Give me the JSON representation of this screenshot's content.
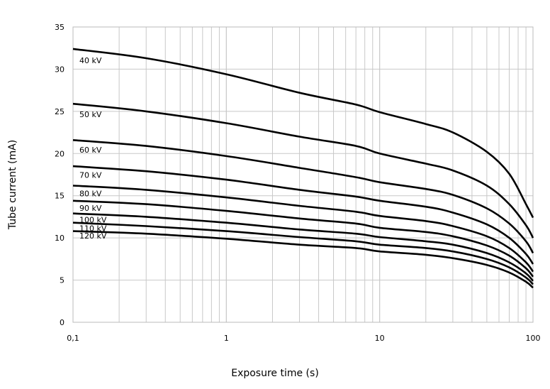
{
  "chart_data": {
    "type": "line",
    "title": "",
    "xlabel": "Exposure time (s)",
    "ylabel": "Tube current (mA)",
    "x_scale": "log",
    "xlim": [
      0.1,
      100
    ],
    "ylim": [
      0,
      35
    ],
    "x_ticks": [
      {
        "value": 0.1,
        "label": "0,1"
      },
      {
        "value": 1,
        "label": "1"
      },
      {
        "value": 10,
        "label": "10"
      },
      {
        "value": 100,
        "label": "100"
      }
    ],
    "y_ticks": [
      0,
      5,
      10,
      15,
      20,
      25,
      30,
      35
    ],
    "grid": true,
    "line_color": "#000000",
    "grid_color": "#c8c8c8",
    "series": [
      {
        "name": "40 kV",
        "x": [
          0.1,
          0.3,
          1,
          3,
          7,
          10,
          20,
          30,
          50,
          70,
          90,
          100
        ],
        "values": [
          32.4,
          31.3,
          29.4,
          27.2,
          25.8,
          24.9,
          23.5,
          22.5,
          20.2,
          17.6,
          14.0,
          12.4
        ]
      },
      {
        "name": "50 kV",
        "x": [
          0.1,
          0.3,
          1,
          3,
          7,
          10,
          20,
          30,
          50,
          70,
          90,
          100
        ],
        "values": [
          25.9,
          25.0,
          23.6,
          22.0,
          20.9,
          20.0,
          18.8,
          18.0,
          16.2,
          14.0,
          11.5,
          10.0
        ]
      },
      {
        "name": "60 kV",
        "x": [
          0.1,
          0.3,
          1,
          3,
          7,
          10,
          20,
          30,
          50,
          70,
          90,
          100
        ],
        "values": [
          21.6,
          20.9,
          19.7,
          18.3,
          17.2,
          16.6,
          15.8,
          15.1,
          13.5,
          11.7,
          9.6,
          8.2
        ]
      },
      {
        "name": "70 kV",
        "x": [
          0.1,
          0.3,
          1,
          3,
          7,
          10,
          20,
          30,
          50,
          70,
          90,
          100
        ],
        "values": [
          18.5,
          17.9,
          16.9,
          15.7,
          14.9,
          14.4,
          13.7,
          13.0,
          11.6,
          10.0,
          8.1,
          6.9
        ]
      },
      {
        "name": "80 kV",
        "x": [
          0.1,
          0.3,
          1,
          3,
          7,
          10,
          20,
          30,
          50,
          70,
          90,
          100
        ],
        "values": [
          16.2,
          15.7,
          14.8,
          13.8,
          13.1,
          12.6,
          12.0,
          11.4,
          10.2,
          8.8,
          7.1,
          6.0
        ]
      },
      {
        "name": "90 kV",
        "x": [
          0.1,
          0.3,
          1,
          3,
          7,
          10,
          20,
          30,
          50,
          70,
          90,
          100
        ],
        "values": [
          14.4,
          14.0,
          13.2,
          12.3,
          11.7,
          11.2,
          10.7,
          10.2,
          9.1,
          7.9,
          6.4,
          5.4
        ]
      },
      {
        "name": "100 kV",
        "x": [
          0.1,
          0.3,
          1,
          3,
          7,
          10,
          20,
          30,
          50,
          70,
          90,
          100
        ],
        "values": [
          12.9,
          12.5,
          11.8,
          11.0,
          10.5,
          10.1,
          9.6,
          9.2,
          8.2,
          7.1,
          5.8,
          4.9
        ]
      },
      {
        "name": "110 kV",
        "x": [
          0.1,
          0.3,
          1,
          3,
          7,
          10,
          20,
          30,
          50,
          70,
          90,
          100
        ],
        "values": [
          11.8,
          11.4,
          10.8,
          10.1,
          9.6,
          9.2,
          8.8,
          8.4,
          7.5,
          6.5,
          5.3,
          4.5
        ]
      },
      {
        "name": "120 kV",
        "x": [
          0.1,
          0.3,
          1,
          3,
          7,
          10,
          20,
          30,
          50,
          70,
          90,
          100
        ],
        "values": [
          10.8,
          10.5,
          9.9,
          9.2,
          8.8,
          8.4,
          8.0,
          7.6,
          6.8,
          5.9,
          4.8,
          4.1
        ]
      }
    ]
  }
}
